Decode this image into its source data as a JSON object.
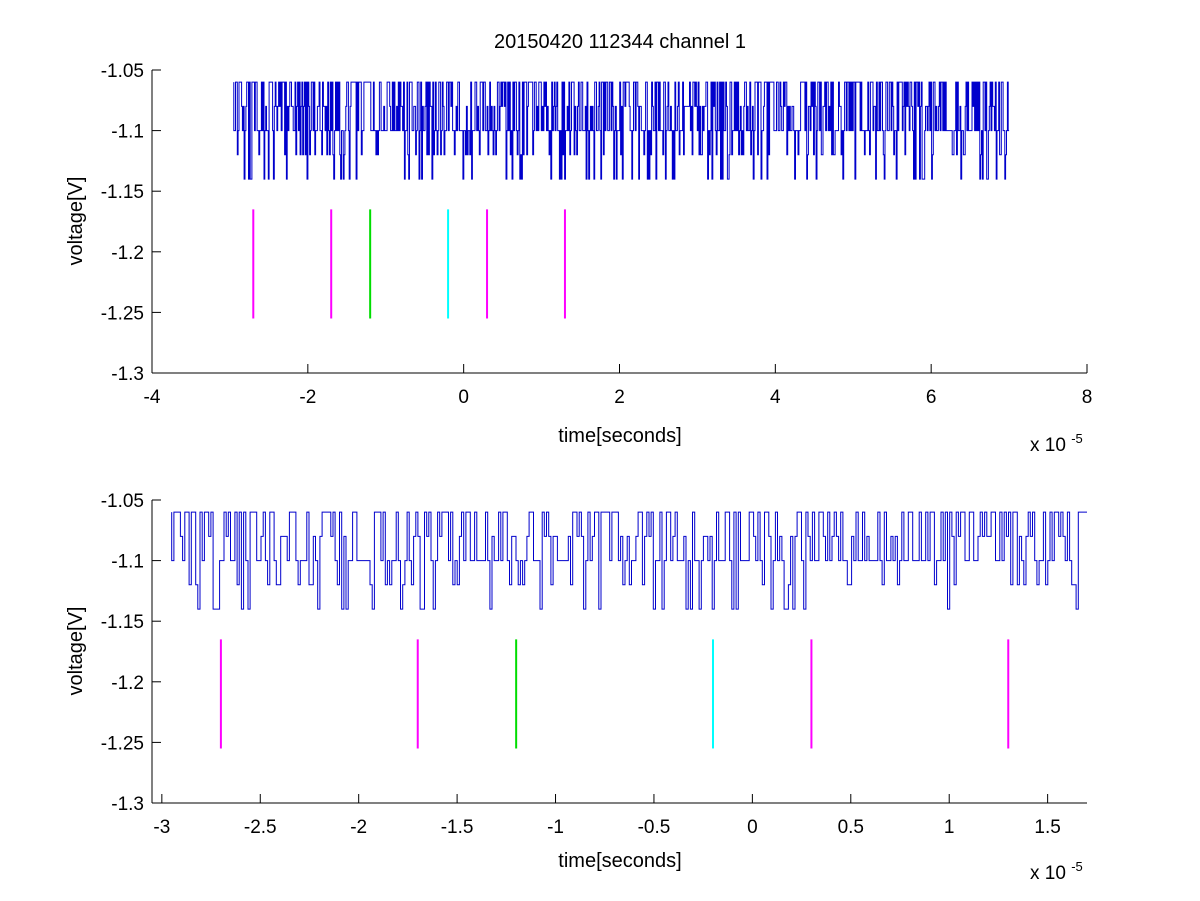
{
  "figure": {
    "title": "20150420 112344 channel 1"
  },
  "colors": {
    "signal": "#0000cc",
    "magenta": "#ff00ff",
    "green": "#00dd00",
    "cyan": "#00ffff",
    "axes": "#000000"
  },
  "chart_data": [
    {
      "type": "line",
      "title": "20150420 112344 channel 1",
      "xlabel": "time[seconds]",
      "ylabel": "voltage[V]",
      "x_exponent_base": "x 10",
      "x_exponent_power": "-5",
      "xlim": [
        -4,
        8
      ],
      "ylim": [
        -1.3,
        -1.05
      ],
      "xticks": [
        -4,
        -2,
        0,
        2,
        4,
        6,
        8
      ],
      "xtick_labels": [
        "-4",
        "-2",
        "0",
        "2",
        "4",
        "6",
        "8"
      ],
      "yticks": [
        -1.05,
        -1.1,
        -1.15,
        -1.2,
        -1.25,
        -1.3
      ],
      "ytick_labels": [
        "-1.05",
        "-1.1",
        "-1.15",
        "-1.2",
        "-1.25",
        "-1.3"
      ],
      "signal": {
        "x_range": [
          -2.95,
          7.0
        ],
        "levels": [
          -1.06,
          -1.08,
          -1.1,
          -1.12,
          -1.14
        ],
        "baseline": -1.1
      },
      "markers": {
        "y_range": [
          -1.255,
          -1.165
        ],
        "lines": [
          {
            "x": -2.7,
            "color": "magenta"
          },
          {
            "x": -1.7,
            "color": "magenta"
          },
          {
            "x": -1.2,
            "color": "green"
          },
          {
            "x": -0.2,
            "color": "cyan"
          },
          {
            "x": 0.3,
            "color": "magenta"
          },
          {
            "x": 1.3,
            "color": "magenta"
          }
        ]
      }
    },
    {
      "type": "line",
      "title": "",
      "xlabel": "time[seconds]",
      "ylabel": "voltage[V]",
      "x_exponent_base": "x 10",
      "x_exponent_power": "-5",
      "xlim": [
        -3.05,
        1.7
      ],
      "ylim": [
        -1.3,
        -1.05
      ],
      "xticks": [
        -3,
        -2.5,
        -2,
        -1.5,
        -1,
        -0.5,
        0,
        0.5,
        1,
        1.5
      ],
      "xtick_labels": [
        "-3",
        "-2.5",
        "-2",
        "-1.5",
        "-1",
        "-0.5",
        "0",
        "0.5",
        "1",
        "1.5"
      ],
      "yticks": [
        -1.05,
        -1.1,
        -1.15,
        -1.2,
        -1.25,
        -1.3
      ],
      "ytick_labels": [
        "-1.05",
        "-1.1",
        "-1.15",
        "-1.2",
        "-1.25",
        "-1.3"
      ],
      "signal": {
        "x_range": [
          -2.95,
          1.7
        ],
        "levels": [
          -1.06,
          -1.08,
          -1.1,
          -1.12,
          -1.14
        ],
        "baseline": -1.1
      },
      "markers": {
        "y_range": [
          -1.255,
          -1.165
        ],
        "lines": [
          {
            "x": -2.7,
            "color": "magenta"
          },
          {
            "x": -1.7,
            "color": "magenta"
          },
          {
            "x": -1.2,
            "color": "green"
          },
          {
            "x": -0.2,
            "color": "cyan"
          },
          {
            "x": 0.3,
            "color": "magenta"
          },
          {
            "x": 1.3,
            "color": "magenta"
          }
        ]
      }
    }
  ]
}
